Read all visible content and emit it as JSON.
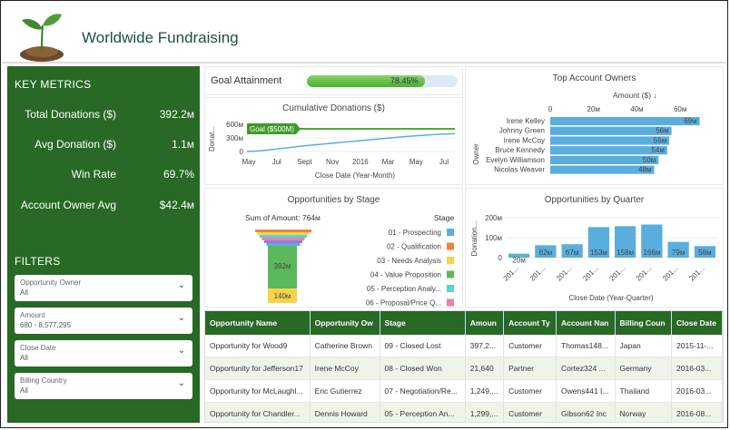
{
  "header": {
    "title": "Worldwide Fundraising"
  },
  "sidebar": {
    "metrics_title": "KEY METRICS",
    "metrics": [
      {
        "label": "Total Donations ($)",
        "value": "392.2м"
      },
      {
        "label": "Avg Donation ($)",
        "value": "1.1м"
      },
      {
        "label": "Win Rate",
        "value": "69.7%"
      },
      {
        "label": "Account Owner Avg",
        "value": "$42.4м"
      }
    ],
    "filters_title": "FILTERS",
    "filters": [
      {
        "label": "Opportunity Owner",
        "value": "All"
      },
      {
        "label": "Amount",
        "value": "680 - 8,577,295"
      },
      {
        "label": "Close Date",
        "value": "All"
      },
      {
        "label": "Billing Country",
        "value": "All"
      }
    ]
  },
  "goal": {
    "label": "Goal Attainment",
    "value": "78.45%",
    "fraction": 0.7845
  },
  "cumulative": {
    "title": "Cumulative Donations ($)",
    "ylabel": "Donat...",
    "xlabel": "Close Date (Year-Month)",
    "yticks": [
      "600м",
      "300м",
      "0"
    ],
    "xticks": [
      "May",
      "Jul",
      "Sept",
      "Nov",
      "2016",
      "Mar",
      "May",
      "Jul"
    ],
    "goal_label": "Goal ($500M)",
    "goal_value": 500,
    "ymax": 600,
    "line": [
      0,
      10,
      30,
      55,
      80,
      105,
      130,
      150,
      170,
      190,
      210,
      230,
      250,
      270,
      290,
      310,
      330,
      345,
      360,
      375,
      385,
      392
    ]
  },
  "top_owners": {
    "title": "Top Account Owners",
    "measure": "Amount ($) ↓",
    "ylabel": "Owner",
    "xticks": [
      "0",
      "20м",
      "40м",
      "60м"
    ],
    "xmax": 70,
    "owners": [
      {
        "name": "Irene Kelley",
        "value": 69,
        "label": "69м"
      },
      {
        "name": "Johnny Green",
        "value": 56,
        "label": "56м"
      },
      {
        "name": "Irene McCoy",
        "value": 55,
        "label": "55м"
      },
      {
        "name": "Bruce Kennedy",
        "value": 54,
        "label": "54м"
      },
      {
        "name": "Evelyn Williamson",
        "value": 50,
        "label": "50м"
      },
      {
        "name": "Nicolas Weaver",
        "value": 48,
        "label": "48м"
      }
    ]
  },
  "stages": {
    "title": "Opportunities by Stage",
    "sum_label": "Sum of Amount: 764м",
    "legend_title": "Stage",
    "funnel_labels": [
      "392м",
      "140м"
    ],
    "legend": [
      {
        "name": "01 - Prospecting",
        "color": "#5aaede"
      },
      {
        "name": "02 - Qualification",
        "color": "#f0833a"
      },
      {
        "name": "03 - Needs Analysis",
        "color": "#f5d547"
      },
      {
        "name": "04 - Value Proposition",
        "color": "#5cb85c"
      },
      {
        "name": "05 - Perception Analy...",
        "color": "#5bd0d6"
      },
      {
        "name": "06 - Proposal/Price Q...",
        "color": "#e283b3"
      }
    ]
  },
  "quarters": {
    "title": "Opportunities by Quarter",
    "ylabel": "Donation...",
    "xlabel": "Close Date (Year-Quarter)",
    "yticks": [
      "200м",
      "100м",
      "0"
    ],
    "ymax": 200,
    "categories": [
      "201...",
      "201...",
      "201...",
      "201...",
      "201...",
      "201...",
      "201...",
      "201..."
    ],
    "values": [
      20,
      62,
      67,
      153,
      158,
      166,
      79,
      58
    ],
    "labels": [
      "20м",
      "62м",
      "67м",
      "153м",
      "158м",
      "166м",
      "79м",
      "58м"
    ]
  },
  "table": {
    "columns": [
      "Opportunity Name",
      "Opportunity Ow",
      "Stage",
      "Amoun",
      "Account Ty",
      "Account Nan",
      "Billing Coun",
      "Close Date"
    ],
    "rows": [
      [
        "Opportunity for Wood9",
        "Catherine Brown",
        "09 - Closed Lost",
        "397,2...",
        "Customer",
        "Thomas148...",
        "Japan",
        "2015-11-..."
      ],
      [
        "Opportunity for Jefferson17",
        "Irene McCoy",
        "08 - Closed Won",
        "21,640",
        "Partner",
        "Cortez324 ...",
        "Germany",
        "2016-03..."
      ],
      [
        "Opportunity for McLaughl...",
        "Eric Gutierrez",
        "07 - Negotiation/Re...",
        "1,249,...",
        "Customer",
        "Owens441 I...",
        "Thailand",
        "2016-03..."
      ],
      [
        "Opportunity for Chandler...",
        "Dennis Howard",
        "05 - Perception An...",
        "1,299,...",
        "Customer",
        "Gibson62 Inc",
        "Norway",
        "2016-08..."
      ]
    ]
  }
}
